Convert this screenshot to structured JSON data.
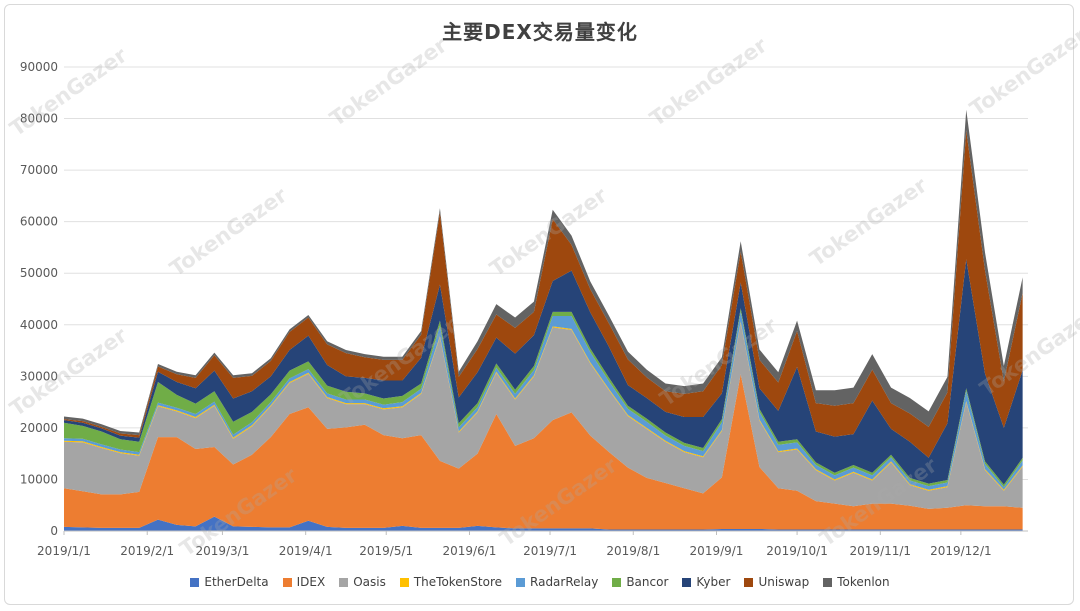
{
  "chart_data": {
    "type": "area",
    "stacked": true,
    "title": "主要DEX交易量变化",
    "xlabel": "",
    "ylabel": "",
    "ylim": [
      0,
      90000
    ],
    "yticks": [
      0,
      10000,
      20000,
      30000,
      40000,
      50000,
      60000,
      70000,
      80000,
      90000
    ],
    "xticks": [
      "2019/1/1",
      "2019/2/1",
      "2019/3/1",
      "2019/4/1",
      "2019/5/1",
      "2019/6/1",
      "2019/7/1",
      "2019/8/1",
      "2019/9/1",
      "2019/10/1",
      "2019/11/1",
      "2019/12/1"
    ],
    "x": [
      "2019/1/1",
      "2019/1/8",
      "2019/1/15",
      "2019/1/22",
      "2019/1/29",
      "2019/2/5",
      "2019/2/12",
      "2019/2/19",
      "2019/2/26",
      "2019/3/5",
      "2019/3/12",
      "2019/3/19",
      "2019/3/26",
      "2019/4/2",
      "2019/4/9",
      "2019/4/16",
      "2019/4/23",
      "2019/4/30",
      "2019/5/7",
      "2019/5/14",
      "2019/5/21",
      "2019/5/28",
      "2019/6/4",
      "2019/6/11",
      "2019/6/18",
      "2019/6/25",
      "2019/7/2",
      "2019/7/9",
      "2019/7/16",
      "2019/7/23",
      "2019/7/30",
      "2019/8/6",
      "2019/8/13",
      "2019/8/20",
      "2019/8/27",
      "2019/9/3",
      "2019/9/10",
      "2019/9/17",
      "2019/9/24",
      "2019/10/1",
      "2019/10/8",
      "2019/10/15",
      "2019/10/22",
      "2019/10/29",
      "2019/11/5",
      "2019/11/12",
      "2019/11/19",
      "2019/11/26",
      "2019/12/3",
      "2019/12/10",
      "2019/12/17",
      "2019/12/24"
    ],
    "grid": true,
    "legend_position": "bottom",
    "series": [
      {
        "name": "EtherDelta",
        "color": "#4472c4",
        "values": [
          800,
          700,
          600,
          600,
          600,
          2200,
          1200,
          900,
          2800,
          900,
          800,
          700,
          700,
          2000,
          800,
          600,
          600,
          600,
          1000,
          600,
          600,
          600,
          1000,
          700,
          500,
          500,
          500,
          500,
          500,
          300,
          300,
          300,
          300,
          300,
          300,
          400,
          400,
          400,
          300,
          300,
          300,
          300,
          300,
          300,
          300,
          300,
          300,
          300,
          300,
          300,
          300,
          300
        ]
      },
      {
        "name": "IDEX",
        "color": "#ed7d31",
        "values": [
          7500,
          7000,
          6500,
          6500,
          7000,
          16000,
          17000,
          15000,
          13500,
          12000,
          14000,
          17500,
          22000,
          22000,
          19000,
          19500,
          20000,
          18000,
          17000,
          18000,
          13000,
          11500,
          14000,
          22000,
          16000,
          17500,
          21000,
          22500,
          18000,
          15000,
          12000,
          10000,
          9000,
          8000,
          7000,
          10000,
          30000,
          12000,
          8000,
          7500,
          5500,
          5000,
          4500,
          5000,
          5000,
          4600,
          4000,
          4200,
          4700,
          4500,
          4500,
          4200
        ]
      },
      {
        "name": "Oasis",
        "color": "#a5a5a5",
        "values": [
          9000,
          9500,
          9000,
          8000,
          7000,
          6000,
          5000,
          6000,
          8000,
          5000,
          5500,
          6000,
          6000,
          6500,
          6000,
          4500,
          4000,
          5000,
          6000,
          8000,
          24000,
          7000,
          8000,
          8000,
          9000,
          12000,
          18000,
          16000,
          14000,
          12000,
          10000,
          9500,
          8000,
          7000,
          7000,
          9000,
          10000,
          9000,
          7000,
          8000,
          6000,
          4500,
          6500,
          4500,
          8000,
          4000,
          3500,
          4000,
          20000,
          7000,
          3000,
          8000
        ]
      },
      {
        "name": "TheTokenStore",
        "color": "#ffc000",
        "values": [
          200,
          200,
          200,
          200,
          200,
          200,
          200,
          200,
          200,
          200,
          200,
          200,
          200,
          200,
          200,
          200,
          200,
          200,
          200,
          200,
          200,
          200,
          200,
          200,
          200,
          200,
          200,
          200,
          200,
          200,
          200,
          200,
          200,
          200,
          200,
          200,
          200,
          200,
          200,
          200,
          200,
          200,
          200,
          200,
          200,
          200,
          200,
          200,
          200,
          200,
          200,
          200
        ]
      },
      {
        "name": "RadarRelay",
        "color": "#5b9bd5",
        "values": [
          500,
          500,
          500,
          500,
          500,
          500,
          500,
          600,
          600,
          600,
          600,
          600,
          700,
          700,
          700,
          700,
          700,
          700,
          800,
          800,
          2000,
          800,
          800,
          800,
          900,
          1000,
          2000,
          2500,
          2000,
          1500,
          1200,
          1200,
          1000,
          1000,
          1000,
          1500,
          2000,
          1500,
          1200,
          1200,
          800,
          800,
          800,
          800,
          800,
          700,
          700,
          700,
          2000,
          1000,
          500,
          1000
        ]
      },
      {
        "name": "Bancor",
        "color": "#70ad47",
        "values": [
          3000,
          2500,
          2500,
          2000,
          2000,
          4000,
          2500,
          2000,
          2000,
          2500,
          2000,
          1500,
          1500,
          1500,
          1500,
          1500,
          1200,
          1200,
          1200,
          1000,
          1000,
          800,
          800,
          800,
          800,
          800,
          800,
          800,
          700,
          700,
          600,
          600,
          600,
          600,
          600,
          600,
          600,
          600,
          600,
          600,
          500,
          500,
          500,
          500,
          500,
          500,
          500,
          500,
          500,
          500,
          500,
          500
        ]
      },
      {
        "name": "Kyber",
        "color": "#264478",
        "values": [
          500,
          600,
          600,
          700,
          800,
          2000,
          2500,
          3000,
          4000,
          4500,
          4000,
          3500,
          4000,
          5000,
          4000,
          3000,
          3000,
          3500,
          3000,
          5000,
          7000,
          5000,
          6000,
          5000,
          7000,
          6000,
          6000,
          8000,
          7000,
          6000,
          4000,
          4000,
          4000,
          5000,
          6000,
          5000,
          5000,
          4000,
          6000,
          14000,
          6000,
          7000,
          6000,
          14000,
          5000,
          7000,
          5000,
          11000,
          25000,
          17000,
          11000,
          17000
        ]
      },
      {
        "name": "Uniswap",
        "color": "#9e480e",
        "values": [
          200,
          300,
          300,
          400,
          500,
          1000,
          1500,
          2000,
          3000,
          4000,
          3000,
          3000,
          3500,
          3500,
          4000,
          4500,
          4000,
          4000,
          4000,
          4500,
          14000,
          4000,
          4500,
          4500,
          5000,
          4500,
          12000,
          5000,
          4500,
          4500,
          5000,
          4000,
          4000,
          4500,
          5000,
          5500,
          6000,
          5500,
          5500,
          7000,
          5500,
          6000,
          6000,
          6000,
          5000,
          5500,
          6000,
          6000,
          25000,
          20000,
          9000,
          15000
        ]
      },
      {
        "name": "Tokenlon",
        "color": "#636363",
        "values": [
          500,
          500,
          500,
          500,
          500,
          500,
          500,
          500,
          500,
          500,
          500,
          500,
          500,
          500,
          600,
          600,
          600,
          600,
          600,
          700,
          800,
          1000,
          1500,
          2000,
          2000,
          2000,
          1800,
          1800,
          1500,
          1500,
          1500,
          1500,
          1500,
          1500,
          1500,
          1500,
          2000,
          2000,
          2000,
          2000,
          2500,
          3000,
          3000,
          3000,
          3000,
          3000,
          3000,
          3000,
          4000,
          3500,
          3000,
          3000
        ]
      }
    ]
  },
  "watermark": "TokenGazer"
}
